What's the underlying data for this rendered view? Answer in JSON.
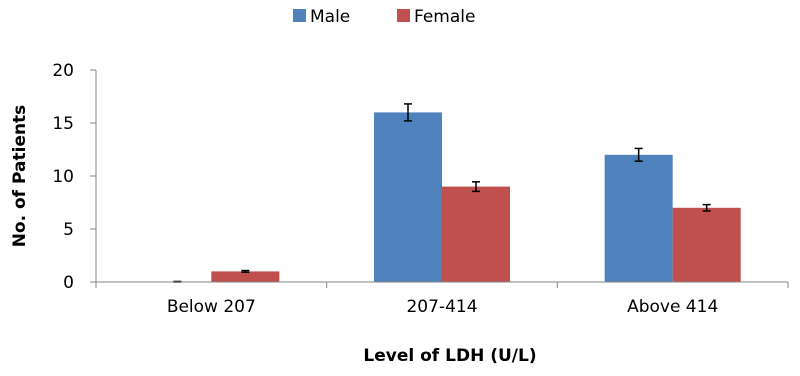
{
  "chart_data": {
    "type": "bar",
    "title": "",
    "xlabel": "Level of LDH (U/L)",
    "ylabel": "No. of Patients",
    "categories": [
      "Below 207",
      "207-414",
      "Above 414"
    ],
    "series": [
      {
        "name": "Male",
        "color": "#4F81BD",
        "values": [
          0,
          16,
          12
        ],
        "error": [
          0.05,
          0.8,
          0.6
        ]
      },
      {
        "name": "Female",
        "color": "#C0504D",
        "values": [
          1,
          9,
          7
        ],
        "error": [
          0.08,
          0.45,
          0.3
        ]
      }
    ],
    "ylim": [
      0,
      20
    ],
    "yticks": [
      "0",
      "5",
      "10",
      "15",
      "20"
    ],
    "grid": false,
    "legend_position": "top-center",
    "error_bars": true
  }
}
